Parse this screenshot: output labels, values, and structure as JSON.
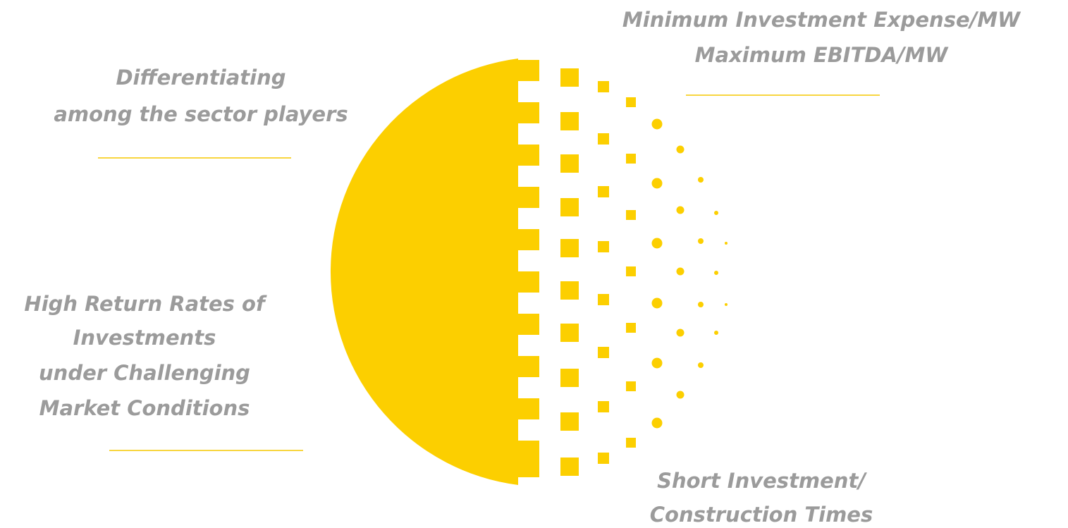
{
  "labels": [
    {
      "lines": [
        "Minimum Investment Expense/MW",
        "Maximum EBITDA/MW"
      ]
    },
    {
      "lines": [
        "Differentiating",
        "among the sector players"
      ]
    },
    {
      "lines": [
        "High Return Rates of",
        "Investments",
        "under Challenging",
        "Market Conditions"
      ]
    },
    {
      "lines": [
        "Short Investment/",
        "Construction Times"
      ]
    }
  ]
}
